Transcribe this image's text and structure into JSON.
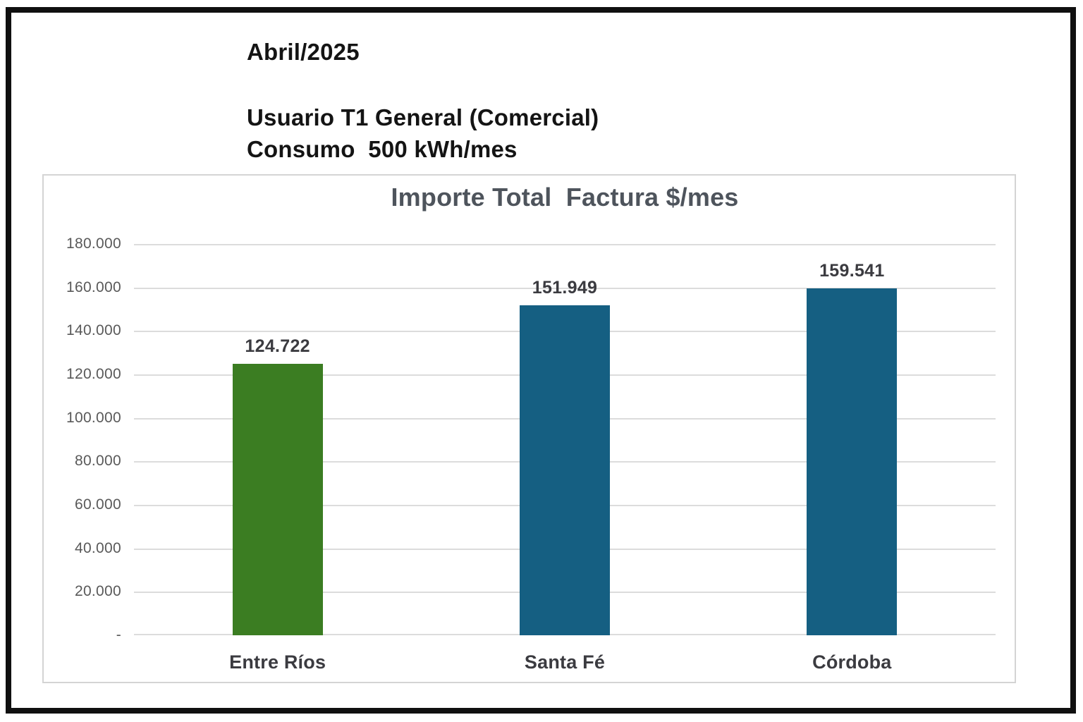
{
  "header": {
    "period": "Abril/2025",
    "user_type": "Usuario T1 General (Comercial)",
    "consumption": "Consumo  500 kWh/mes"
  },
  "chart_data": {
    "type": "bar",
    "title": "Importe Total  Factura $/mes",
    "categories": [
      "Entre Ríos",
      "Santa Fé",
      "Córdoba"
    ],
    "values": [
      124722,
      151949,
      159541
    ],
    "value_labels": [
      "124.722",
      "151.949",
      "159.541"
    ],
    "bar_colors": [
      "#3b7d22",
      "#155f82",
      "#155f82"
    ],
    "xlabel": "",
    "ylabel": "",
    "ylim": [
      0,
      180000
    ],
    "ytick_step": 20000,
    "ytick_labels": [
      "-",
      "20.000",
      "40.000",
      "60.000",
      "80.000",
      "100.000",
      "120.000",
      "140.000",
      "160.000",
      "180.000"
    ],
    "grid": true,
    "legend": false,
    "colors": {
      "gridline": "#dcdcdc",
      "panel_border": "#d4d4d4",
      "title": "#4e545c",
      "ytick": "#595959",
      "value_label": "#3b3b40",
      "category_label": "#3b3b40",
      "header_text": "#141414",
      "frame": "#101010"
    }
  }
}
